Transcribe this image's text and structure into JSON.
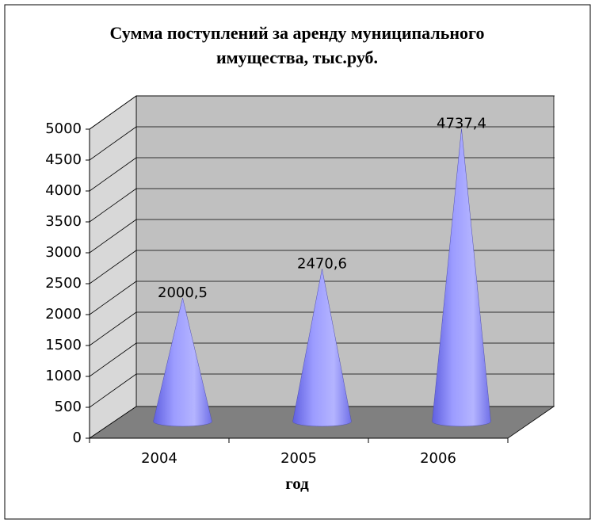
{
  "chart_data": {
    "type": "cone3d",
    "title": "Сумма поступлений за аренду муниципального имущества, тыс.руб.",
    "x_label": "год",
    "categories": [
      "2004",
      "2005",
      "2006"
    ],
    "values": [
      2000.5,
      2470.6,
      4737.4
    ],
    "value_labels": [
      "2000,5",
      "2470,6",
      "4737,4"
    ],
    "color": "#8a8aff",
    "ylim": [
      0,
      5000
    ],
    "yticks": [
      0,
      500,
      1000,
      1500,
      2000,
      2500,
      3000,
      3500,
      4000,
      4500,
      5000
    ],
    "grid": true
  }
}
